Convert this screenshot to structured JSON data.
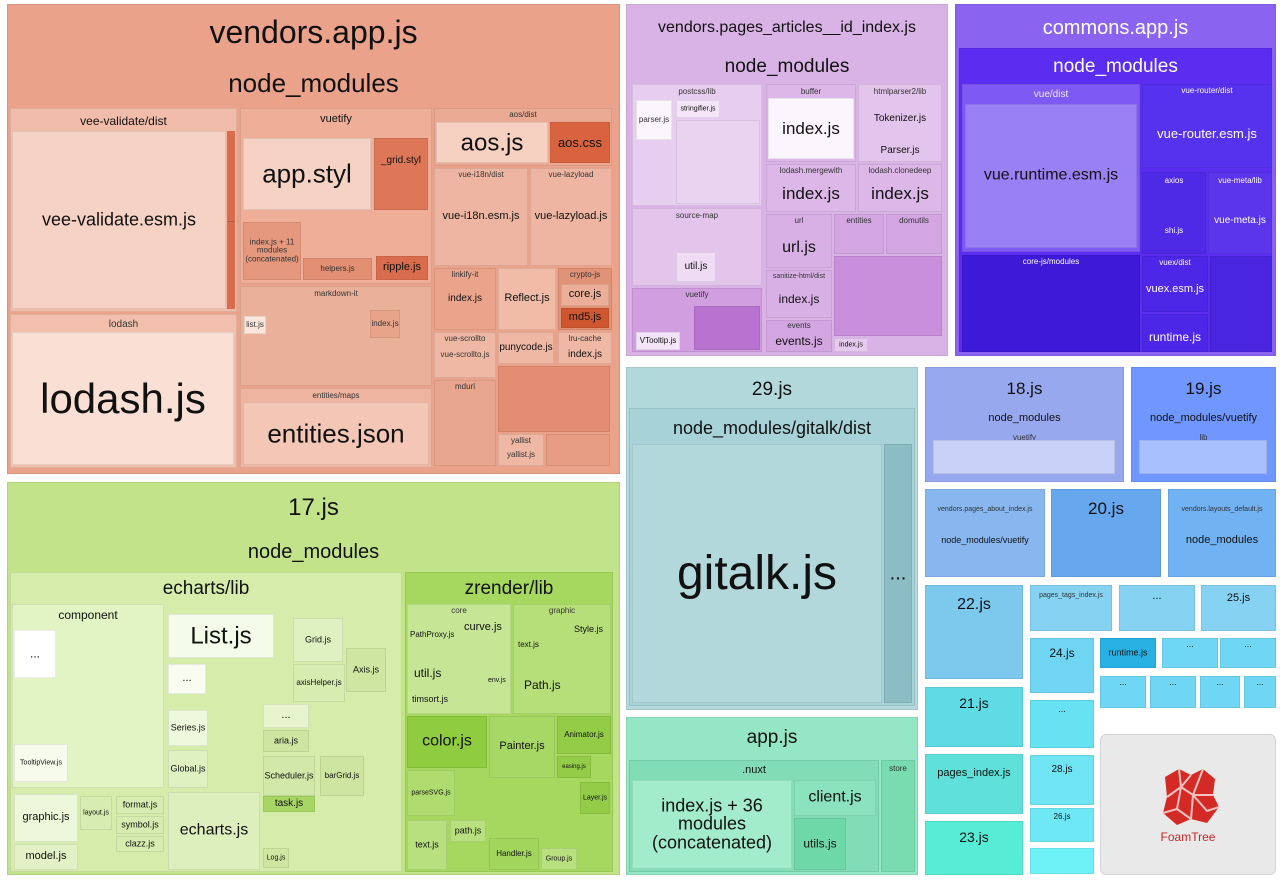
{
  "ui": {
    "sidebar_toggle": ">",
    "ellipsis": "..."
  },
  "colors": {
    "vendors_app": "#eaa28a",
    "articles": "#d9b3e6",
    "commons": "#8a63f0",
    "js17": "#c2e38a",
    "js29": "#b3d8dc",
    "appjs": "#94e6c4",
    "js18": "#97a8ef",
    "js19": "#6f97ff",
    "small_cyan": "#6fd7f3"
  },
  "vendors_app": {
    "title": "vendors.app.js",
    "node_modules": "node_modules",
    "vee_validate_dist": "vee-validate/dist",
    "vee_validate_esm": "vee-validate.esm.js",
    "vuetify": "vuetify",
    "app_styl": "app.styl",
    "grid_styl": "_grid.styl",
    "index_concat": "index.js + 11 modules (concatenated)",
    "helpers": "helpers.js",
    "ripple": "ripple.js",
    "markdown_it": "markdown-it",
    "list_js": "list.js",
    "md_index": "index.js",
    "lodash": "lodash",
    "lodash_js": "lodash.js",
    "entities_maps": "entities/maps",
    "entities_json": "entities.json",
    "aos_dist": "aos/dist",
    "aos_js": "aos.js",
    "aos_css": "aos.css",
    "vue_i18n_dist": "vue-i18n/dist",
    "vue_i18n_esm": "vue-i18n.esm.js",
    "vue_lazyload": "vue-lazyload",
    "vue_lazyload_js": "vue-lazyload.js",
    "linkify_it": "linkify-it",
    "linkify_index": "index.js",
    "reflect": "Reflect.js",
    "crypto_js": "crypto-js",
    "core_js": "core.js",
    "md5_js": "md5.js",
    "vue_scrollto": "vue-scrollto",
    "vue_scrollto_js": "vue-scrollto.js",
    "punycode": "punycode.js",
    "lru_cache": "lru-cache",
    "lru_index": "index.js",
    "mdurl": "mdurl",
    "yallist": "yallist",
    "yallist_js": "yallist.js"
  },
  "articles": {
    "title": "vendors.pages_articles__id_index.js",
    "node_modules": "node_modules",
    "postcss_lib": "postcss/lib",
    "parser": "parser.js",
    "stringifier": "stringifier.js",
    "source_map": "source-map",
    "util": "util.js",
    "vuetify": "vuetify",
    "vtooltip": "VTooltip.js",
    "buffer": "buffer",
    "buffer_index": "index.js",
    "htmlparser2": "htmlparser2/lib",
    "tokenizer": "Tokenizer.js",
    "parser2": "Parser.js",
    "lodash_merge": "lodash.mergewith",
    "merge_index": "index.js",
    "lodash_clone": "lodash.clonedeep",
    "clone_index": "index.js",
    "url": "url",
    "url_js": "url.js",
    "entities": "entities",
    "domutils": "domutils",
    "sanitize": "sanitize-html/dist",
    "sanitize_index": "index.js",
    "events": "events",
    "events_js": "events.js",
    "index_small": "index.js"
  },
  "commons": {
    "title": "commons.app.js",
    "node_modules": "node_modules",
    "vue_dist": "vue/dist",
    "vue_runtime": "vue.runtime.esm.js",
    "vue_router_dist": "vue-router/dist",
    "vue_router_esm": "vue-router.esm.js",
    "axios": "axios",
    "vue_meta_lib": "vue-meta/lib",
    "vue_meta_js": "vue-meta.js",
    "core_js_modules": "core-js/modules",
    "vuex_dist": "vuex/dist",
    "vuex_esm": "vuex.esm.js",
    "runtime": "runtime.js",
    "shi": "shi.js"
  },
  "js17": {
    "title": "17.js",
    "node_modules": "node_modules",
    "echarts_lib": "echarts/lib",
    "component": "component",
    "list_js": "List.js",
    "grid_js": "Grid.js",
    "axis_js": "Axis.js",
    "axis_helper": "axisHelper.js",
    "series": "Series.js",
    "global": "Global.js",
    "aria": "aria.js",
    "scheduler": "Scheduler.js",
    "bargrid": "barGrid.js",
    "task": "task.js",
    "echarts_js": "echarts.js",
    "log": "Log.js",
    "tooltip_view": "TooltipView.js",
    "graphic": "graphic.js",
    "layout": "layout.js",
    "format": "format.js",
    "symbol": "symbol.js",
    "clazz": "clazz.js",
    "model": "model.js",
    "zrender_lib": "zrender/lib",
    "core": "core",
    "path_proxy": "PathProxy.js",
    "curve": "curve.js",
    "util": "util.js",
    "env": "env.js",
    "timsort": "timsort.js",
    "graphic2": "graphic",
    "style": "Style.js",
    "text_js": "text.js",
    "path_js": "Path.js",
    "color": "color.js",
    "painter": "Painter.js",
    "animator": "Animator.js",
    "easing": "easing.js",
    "parse_svg": "parseSVG.js",
    "layer": "Layer.js",
    "text2": "text.js",
    "path2": "path.js",
    "handler": "Handler.js",
    "group": "Group.js"
  },
  "js29": {
    "title": "29.js",
    "path": "node_modules/gitalk/dist",
    "gitalk": "gitalk.js"
  },
  "appjs": {
    "title": "app.js",
    "nuxt": ".nuxt",
    "index_concat": "index.js + 36 modules (concatenated)",
    "client": "client.js",
    "utils": "utils.js",
    "store": "store"
  },
  "small": {
    "js18": "18.js",
    "js18_nm": "node_modules",
    "js18_vuetify": "vuetify",
    "js19": "19.js",
    "js19_nm": "node_modules/vuetify",
    "js19_lib": "lib",
    "about": "vendors.pages_about_index.js",
    "about_nm": "node_modules/vuetify",
    "js20": "20.js",
    "layouts": "vendors.layouts_default.js",
    "layouts_nm": "node_modules",
    "js22": "22.js",
    "tags": "pages_tags_index.js",
    "js25": "25.js",
    "js24": "24.js",
    "runtime": "runtime.js",
    "js21": "21.js",
    "pages_index": "pages_index.js",
    "js28": "28.js",
    "js26": "26.js",
    "js23": "23.js"
  },
  "foamtree": {
    "label": "FoamTree"
  }
}
